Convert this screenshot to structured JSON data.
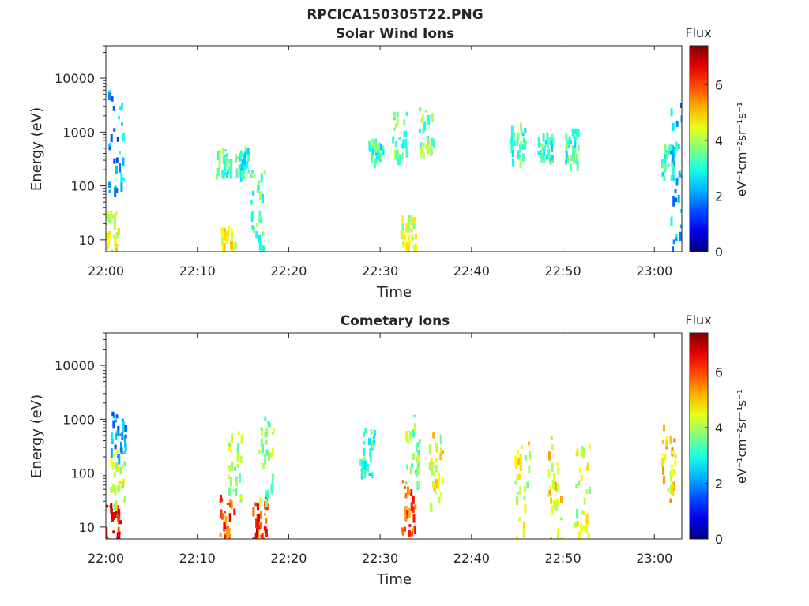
{
  "figure": {
    "title": "RPCICA150305T22.PNG"
  },
  "colors": {
    "colormap": "jet",
    "axis": "#262626",
    "background": "#ffffff"
  },
  "chart_data": [
    {
      "type": "heatmap",
      "title": "Solar Wind Ions",
      "xlabel": "Time",
      "ylabel": "Energy (eV)",
      "x_range": [
        "22:00",
        "23:03"
      ],
      "x_ticks": [
        "22:00",
        "22:10",
        "22:20",
        "22:30",
        "22:40",
        "22:50",
        "23:00"
      ],
      "y_scale": "log",
      "y_range": [
        6,
        40000
      ],
      "y_ticks": [
        "10",
        "100",
        "1000",
        "10000"
      ],
      "grid": false,
      "colorbar": {
        "title": "Flux",
        "label": "eV⁻¹cm⁻²sr⁻¹s⁻¹",
        "range": [
          0,
          7.4
        ],
        "ticks": [
          "0",
          "2",
          "4",
          "6"
        ]
      },
      "blobs": [
        {
          "t": "22:00.5",
          "e_lo": 6,
          "e_hi": 40,
          "v": 4.6
        },
        {
          "t": "22:01.0",
          "e_lo": 80,
          "e_hi": 7000,
          "v": 2.2
        },
        {
          "t": "22:12.8",
          "e_lo": 150,
          "e_hi": 500,
          "v": 3.4
        },
        {
          "t": "22:14.8",
          "e_lo": 180,
          "e_hi": 550,
          "v": 3.0
        },
        {
          "t": "22:16.5",
          "e_lo": 6,
          "e_hi": 250,
          "v": 3.3
        },
        {
          "t": "22:13.3",
          "e_lo": 8,
          "e_hi": 18,
          "v": 4.5
        },
        {
          "t": "22:29.5",
          "e_lo": 300,
          "e_hi": 800,
          "v": 3.2
        },
        {
          "t": "22:32.0",
          "e_lo": 300,
          "e_hi": 2500,
          "v": 3.4
        },
        {
          "t": "22:33.0",
          "e_lo": 6,
          "e_hi": 30,
          "v": 4.2
        },
        {
          "t": "22:35.0",
          "e_lo": 400,
          "e_hi": 3000,
          "v": 3.6
        },
        {
          "t": "22:45.0",
          "e_lo": 300,
          "e_hi": 1500,
          "v": 3.3
        },
        {
          "t": "22:48.0",
          "e_lo": 250,
          "e_hi": 1000,
          "v": 3.2
        },
        {
          "t": "22:51.0",
          "e_lo": 250,
          "e_hi": 1200,
          "v": 3.2
        },
        {
          "t": "23:01.5",
          "e_lo": 150,
          "e_hi": 700,
          "v": 3.0
        },
        {
          "t": "23:02.5",
          "e_lo": 6,
          "e_hi": 4000,
          "v": 2.2
        }
      ]
    },
    {
      "type": "heatmap",
      "title": "Cometary Ions",
      "xlabel": "Time",
      "ylabel": "Energy (eV)",
      "x_range": [
        "22:00",
        "23:03"
      ],
      "x_ticks": [
        "22:00",
        "22:10",
        "22:20",
        "22:30",
        "22:40",
        "22:50",
        "23:00"
      ],
      "y_scale": "log",
      "y_range": [
        6,
        40000
      ],
      "y_ticks": [
        "10",
        "100",
        "1000",
        "10000"
      ],
      "grid": false,
      "colorbar": {
        "title": "Flux",
        "label": "eV⁻¹cm⁻²sr⁻¹s⁻¹",
        "range": [
          0,
          7.4
        ],
        "ticks": [
          "0",
          "2",
          "4",
          "6"
        ]
      },
      "blobs": [
        {
          "t": "22:00.7",
          "e_lo": 6,
          "e_hi": 30,
          "v": 6.4
        },
        {
          "t": "22:01.2",
          "e_lo": 20,
          "e_hi": 300,
          "v": 4.2
        },
        {
          "t": "22:01.3",
          "e_lo": 200,
          "e_hi": 1500,
          "v": 2.0
        },
        {
          "t": "22:13.2",
          "e_lo": 6,
          "e_hi": 40,
          "v": 6.0
        },
        {
          "t": "22:14.0",
          "e_lo": 30,
          "e_hi": 800,
          "v": 4.0
        },
        {
          "t": "22:16.8",
          "e_lo": 6,
          "e_hi": 40,
          "v": 6.2
        },
        {
          "t": "22:17.5",
          "e_lo": 30,
          "e_hi": 1200,
          "v": 3.8
        },
        {
          "t": "22:28.5",
          "e_lo": 80,
          "e_hi": 700,
          "v": 3.2
        },
        {
          "t": "22:33.0",
          "e_lo": 6,
          "e_hi": 80,
          "v": 6.0
        },
        {
          "t": "22:33.5",
          "e_lo": 60,
          "e_hi": 1500,
          "v": 3.8
        },
        {
          "t": "22:36.0",
          "e_lo": 20,
          "e_hi": 600,
          "v": 4.4
        },
        {
          "t": "22:45.5",
          "e_lo": 6,
          "e_hi": 400,
          "v": 4.4
        },
        {
          "t": "22:49.0",
          "e_lo": 6,
          "e_hi": 500,
          "v": 4.6
        },
        {
          "t": "22:52.0",
          "e_lo": 6,
          "e_hi": 500,
          "v": 4.2
        },
        {
          "t": "23:01.5",
          "e_lo": 30,
          "e_hi": 800,
          "v": 4.8
        }
      ]
    }
  ]
}
